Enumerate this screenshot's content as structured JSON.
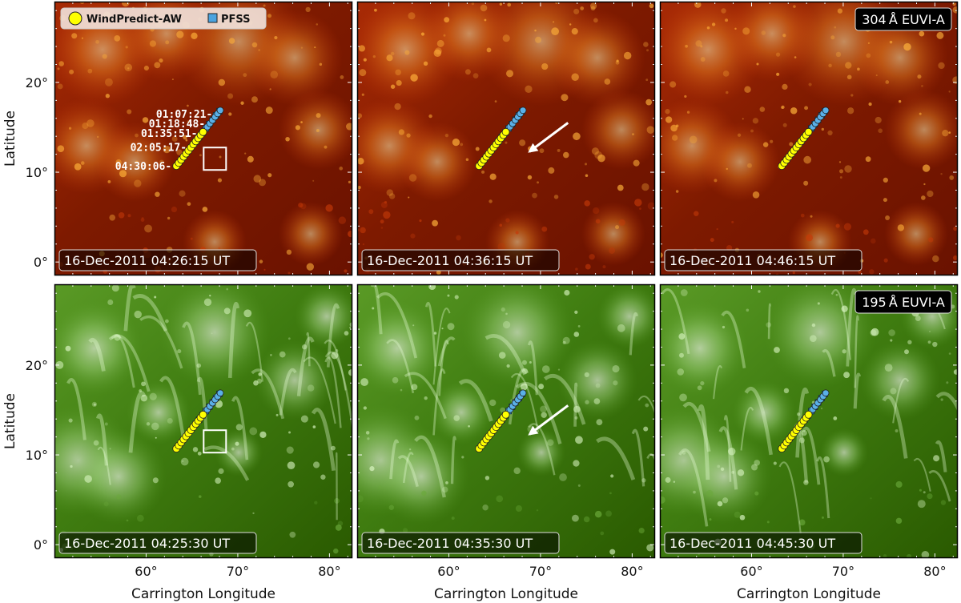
{
  "legend": {
    "items": [
      {
        "label": "WindPredict-AW",
        "color": "#ffff00",
        "marker": "circle"
      },
      {
        "label": "PFSS",
        "color": "#4aa3df",
        "marker": "square"
      }
    ]
  },
  "rows": [
    {
      "channel_label": "304 Å EUVI-A",
      "colormap": "sdo-304-red",
      "timestamps": [
        "16-Dec-2011 04:26:15 UT",
        "16-Dec-2011 04:36:15 UT",
        "16-Dec-2011 04:46:15 UT"
      ]
    },
    {
      "channel_label": "195 Å EUVI-A",
      "colormap": "euvi-195-green",
      "timestamps": [
        "16-Dec-2011 04:25:30 UT",
        "16-Dec-2011 04:35:30 UT",
        "16-Dec-2011 04:45:30 UT"
      ]
    }
  ],
  "axes": {
    "ylabel": "Latitude",
    "xlabel": "Carrington Longitude",
    "y_ticks": [
      "0°",
      "10°",
      "20°"
    ],
    "x_ticks": [
      "60°",
      "70°",
      "80°"
    ],
    "x_range": [
      50,
      82.5
    ],
    "y_range": [
      -1.5,
      29
    ]
  },
  "trajectory_labels": [
    "01:07:21",
    "01:18:48",
    "01:35:51",
    "02:05:17",
    "04:30:06"
  ],
  "trajectory": {
    "start": [
      63.3,
      10.7
    ],
    "end": [
      68.0,
      16.8
    ],
    "windpredict_count": 12,
    "pfss_count": 8
  },
  "annotations": {
    "box_center": [
      67.5,
      11.5
    ],
    "arrow_from": [
      73.0,
      15.5
    ],
    "arrow_to": [
      68.8,
      12.3
    ]
  },
  "colors": {
    "red_bg": "#8a1500",
    "green_bg": "#2e6a00",
    "label_bg": "#000000"
  }
}
